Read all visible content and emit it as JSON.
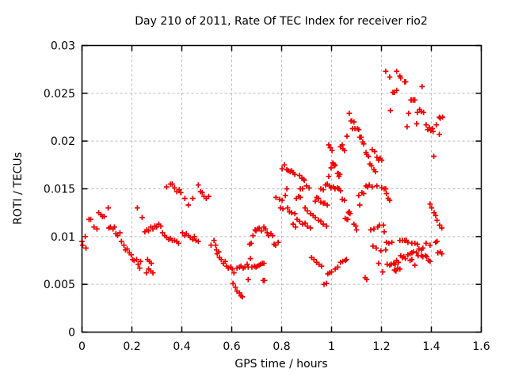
{
  "chart_data": {
    "type": "scatter",
    "title": "Day 210 of 2011, Rate Of TEC Index for receiver rio2",
    "xlabel": "GPS time / hours",
    "ylabel": "ROTI / TECUs",
    "xlim": [
      0,
      1.6
    ],
    "ylim": [
      0,
      0.03
    ],
    "xticks": [
      0,
      0.2,
      0.4,
      0.6,
      0.8,
      1,
      1.2,
      1.4,
      1.6
    ],
    "xtick_labels": [
      "0",
      "0.2",
      "0.4",
      "0.6",
      "0.8",
      "1",
      "1.2",
      "1.4",
      "1.6"
    ],
    "yticks": [
      0,
      0.005,
      0.01,
      0.015,
      0.02,
      0.025,
      0.03
    ],
    "ytick_labels": [
      "0",
      "0.005",
      "0.01",
      "0.015",
      "0.02",
      "0.025",
      "0.03"
    ],
    "grid": true,
    "legend": "none",
    "marker": "plus",
    "colors": {
      "marker": "#ee0000",
      "grid": "#b8b8b8",
      "border": "#000000",
      "background": "#ffffff",
      "text": "#000000"
    },
    "points": [
      [
        0.0,
        0.0095
      ],
      [
        0.003,
        0.0091
      ],
      [
        0.013,
        0.01
      ],
      [
        0.016,
        0.0088
      ],
      [
        0.028,
        0.0118
      ],
      [
        0.035,
        0.0118
      ],
      [
        0.048,
        0.011
      ],
      [
        0.06,
        0.0108
      ],
      [
        0.067,
        0.0125
      ],
      [
        0.076,
        0.0123
      ],
      [
        0.082,
        0.0121
      ],
      [
        0.089,
        0.0121
      ],
      [
        0.105,
        0.013
      ],
      [
        0.108,
        0.0109
      ],
      [
        0.114,
        0.011
      ],
      [
        0.124,
        0.0108
      ],
      [
        0.13,
        0.011
      ],
      [
        0.136,
        0.0103
      ],
      [
        0.143,
        0.0101
      ],
      [
        0.152,
        0.0104
      ],
      [
        0.158,
        0.0095
      ],
      [
        0.168,
        0.0091
      ],
      [
        0.174,
        0.0086
      ],
      [
        0.181,
        0.0087
      ],
      [
        0.19,
        0.0083
      ],
      [
        0.197,
        0.0081
      ],
      [
        0.203,
        0.0076
      ],
      [
        0.209,
        0.0075
      ],
      [
        0.219,
        0.0076
      ],
      [
        0.222,
        0.013
      ],
      [
        0.225,
        0.0071
      ],
      [
        0.231,
        0.0067
      ],
      [
        0.235,
        0.0074
      ],
      [
        0.241,
        0.012
      ],
      [
        0.252,
        0.0105
      ],
      [
        0.258,
        0.0062
      ],
      [
        0.26,
        0.0107
      ],
      [
        0.263,
        0.0076
      ],
      [
        0.267,
        0.0106
      ],
      [
        0.267,
        0.0066
      ],
      [
        0.27,
        0.0074
      ],
      [
        0.276,
        0.011
      ],
      [
        0.276,
        0.0064
      ],
      [
        0.278,
        0.0072
      ],
      [
        0.284,
        0.0108
      ],
      [
        0.284,
        0.0062
      ],
      [
        0.292,
        0.0111
      ],
      [
        0.299,
        0.011
      ],
      [
        0.308,
        0.0113
      ],
      [
        0.316,
        0.0111
      ],
      [
        0.323,
        0.0104
      ],
      [
        0.331,
        0.0101
      ],
      [
        0.339,
        0.0152
      ],
      [
        0.339,
        0.0099
      ],
      [
        0.348,
        0.0097
      ],
      [
        0.355,
        0.0155
      ],
      [
        0.355,
        0.0098
      ],
      [
        0.362,
        0.0155
      ],
      [
        0.362,
        0.0096
      ],
      [
        0.371,
        0.0151
      ],
      [
        0.371,
        0.0096
      ],
      [
        0.38,
        0.0147
      ],
      [
        0.38,
        0.0095
      ],
      [
        0.387,
        0.0093
      ],
      [
        0.39,
        0.0149
      ],
      [
        0.396,
        0.0146
      ],
      [
        0.403,
        0.0104
      ],
      [
        0.412,
        0.014
      ],
      [
        0.412,
        0.0101
      ],
      [
        0.418,
        0.0103
      ],
      [
        0.426,
        0.0133
      ],
      [
        0.426,
        0.0101
      ],
      [
        0.434,
        0.0099
      ],
      [
        0.444,
        0.014
      ],
      [
        0.444,
        0.0097
      ],
      [
        0.45,
        0.01
      ],
      [
        0.457,
        0.0096
      ],
      [
        0.466,
        0.0154
      ],
      [
        0.466,
        0.0095
      ],
      [
        0.475,
        0.0147
      ],
      [
        0.482,
        0.0146
      ],
      [
        0.489,
        0.0142
      ],
      [
        0.498,
        0.014
      ],
      [
        0.508,
        0.0142
      ],
      [
        0.517,
        0.0091
      ],
      [
        0.529,
        0.0096
      ],
      [
        0.536,
        0.0091
      ],
      [
        0.539,
        0.0086
      ],
      [
        0.542,
        0.0082
      ],
      [
        0.548,
        0.0084
      ],
      [
        0.551,
        0.0078
      ],
      [
        0.558,
        0.0076
      ],
      [
        0.567,
        0.0072
      ],
      [
        0.574,
        0.0074
      ],
      [
        0.58,
        0.0069
      ],
      [
        0.586,
        0.0067
      ],
      [
        0.596,
        0.0068
      ],
      [
        0.602,
        0.0066
      ],
      [
        0.605,
        0.0051
      ],
      [
        0.609,
        0.0062
      ],
      [
        0.615,
        0.0047
      ],
      [
        0.621,
        0.0067
      ],
      [
        0.621,
        0.0043
      ],
      [
        0.631,
        0.0068
      ],
      [
        0.631,
        0.0041
      ],
      [
        0.637,
        0.0069
      ],
      [
        0.637,
        0.0038
      ],
      [
        0.643,
        0.0037
      ],
      [
        0.646,
        0.0067
      ],
      [
        0.653,
        0.0068
      ],
      [
        0.662,
        0.0071
      ],
      [
        0.666,
        0.0068
      ],
      [
        0.666,
        0.0055
      ],
      [
        0.672,
        0.0092
      ],
      [
        0.675,
        0.0077
      ],
      [
        0.678,
        0.0093
      ],
      [
        0.681,
        0.0068
      ],
      [
        0.685,
        0.0101
      ],
      [
        0.691,
        0.0069
      ],
      [
        0.694,
        0.0107
      ],
      [
        0.697,
        0.0106
      ],
      [
        0.697,
        0.0068
      ],
      [
        0.703,
        0.0108
      ],
      [
        0.703,
        0.0069
      ],
      [
        0.71,
        0.0109
      ],
      [
        0.71,
        0.007
      ],
      [
        0.716,
        0.0071
      ],
      [
        0.719,
        0.0106
      ],
      [
        0.723,
        0.0072
      ],
      [
        0.726,
        0.0054
      ],
      [
        0.729,
        0.011
      ],
      [
        0.729,
        0.0072
      ],
      [
        0.732,
        0.0054
      ],
      [
        0.735,
        0.0108
      ],
      [
        0.742,
        0.0104
      ],
      [
        0.748,
        0.0101
      ],
      [
        0.757,
        0.0103
      ],
      [
        0.764,
        0.0101
      ],
      [
        0.77,
        0.0092
      ],
      [
        0.776,
        0.0091
      ],
      [
        0.777,
        0.0141
      ],
      [
        0.786,
        0.0094
      ],
      [
        0.792,
        0.0139
      ],
      [
        0.796,
        0.013
      ],
      [
        0.802,
        0.0171
      ],
      [
        0.802,
        0.0138
      ],
      [
        0.805,
        0.0129
      ],
      [
        0.811,
        0.0175
      ],
      [
        0.815,
        0.0143
      ],
      [
        0.821,
        0.017
      ],
      [
        0.821,
        0.015
      ],
      [
        0.824,
        0.013
      ],
      [
        0.827,
        0.0169
      ],
      [
        0.831,
        0.0126
      ],
      [
        0.834,
        0.0168
      ],
      [
        0.84,
        0.0169
      ],
      [
        0.84,
        0.0125
      ],
      [
        0.846,
        0.0167
      ],
      [
        0.846,
        0.0113
      ],
      [
        0.853,
        0.0165
      ],
      [
        0.853,
        0.0124
      ],
      [
        0.856,
        0.011
      ],
      [
        0.859,
        0.014
      ],
      [
        0.862,
        0.0118
      ],
      [
        0.868,
        0.0142
      ],
      [
        0.872,
        0.0164
      ],
      [
        0.872,
        0.0116
      ],
      [
        0.875,
        0.015
      ],
      [
        0.875,
        0.0141
      ],
      [
        0.881,
        0.0161
      ],
      [
        0.884,
        0.015
      ],
      [
        0.884,
        0.0113
      ],
      [
        0.888,
        0.016
      ],
      [
        0.891,
        0.0159
      ],
      [
        0.894,
        0.013
      ],
      [
        0.894,
        0.0114
      ],
      [
        0.9,
        0.0153
      ],
      [
        0.903,
        0.0127
      ],
      [
        0.903,
        0.0111
      ],
      [
        0.91,
        0.0151
      ],
      [
        0.916,
        0.0124
      ],
      [
        0.916,
        0.0109
      ],
      [
        0.92,
        0.0078
      ],
      [
        0.926,
        0.0122
      ],
      [
        0.93,
        0.0076
      ],
      [
        0.935,
        0.0137
      ],
      [
        0.935,
        0.012
      ],
      [
        0.94,
        0.0073
      ],
      [
        0.941,
        0.0141
      ],
      [
        0.948,
        0.014
      ],
      [
        0.948,
        0.0117
      ],
      [
        0.95,
        0.0071
      ],
      [
        0.957,
        0.015
      ],
      [
        0.957,
        0.0136
      ],
      [
        0.957,
        0.0116
      ],
      [
        0.96,
        0.0069
      ],
      [
        0.967,
        0.0149
      ],
      [
        0.967,
        0.0135
      ],
      [
        0.967,
        0.0113
      ],
      [
        0.97,
        0.005
      ],
      [
        0.973,
        0.0135
      ],
      [
        0.976,
        0.0154
      ],
      [
        0.98,
        0.0111
      ],
      [
        0.98,
        0.0051
      ],
      [
        0.983,
        0.0155
      ],
      [
        0.983,
        0.0133
      ],
      [
        0.985,
        0.0061
      ],
      [
        0.989,
        0.0196
      ],
      [
        0.989,
        0.0163
      ],
      [
        0.992,
        0.0153
      ],
      [
        0.992,
        0.0062
      ],
      [
        0.995,
        0.0193
      ],
      [
        0.998,
        0.0172
      ],
      [
        0.998,
        0.0151
      ],
      [
        1.0,
        0.0063
      ],
      [
        1.002,
        0.019
      ],
      [
        1.005,
        0.0177
      ],
      [
        1.008,
        0.0176
      ],
      [
        1.008,
        0.0152
      ],
      [
        1.011,
        0.0174
      ],
      [
        1.014,
        0.0175
      ],
      [
        1.014,
        0.015
      ],
      [
        1.015,
        0.0066
      ],
      [
        1.024,
        0.0166
      ],
      [
        1.024,
        0.0151
      ],
      [
        1.025,
        0.0068
      ],
      [
        1.027,
        0.0166
      ],
      [
        1.03,
        0.0163
      ],
      [
        1.03,
        0.015
      ],
      [
        1.033,
        0.0165
      ],
      [
        1.036,
        0.0194
      ],
      [
        1.036,
        0.0148
      ],
      [
        1.036,
        0.0073
      ],
      [
        1.043,
        0.0196
      ],
      [
        1.043,
        0.0139
      ],
      [
        1.045,
        0.0074
      ],
      [
        1.046,
        0.0192
      ],
      [
        1.052,
        0.019
      ],
      [
        1.052,
        0.0138
      ],
      [
        1.055,
        0.0119
      ],
      [
        1.055,
        0.0075
      ],
      [
        1.06,
        0.0076
      ],
      [
        1.062,
        0.0205
      ],
      [
        1.062,
        0.0118
      ],
      [
        1.065,
        0.0118
      ],
      [
        1.068,
        0.0125
      ],
      [
        1.071,
        0.0229
      ],
      [
        1.071,
        0.0126
      ],
      [
        1.074,
        0.0124
      ],
      [
        1.078,
        0.0221
      ],
      [
        1.081,
        0.0221
      ],
      [
        1.084,
        0.0213
      ],
      [
        1.09,
        0.022
      ],
      [
        1.09,
        0.0113
      ],
      [
        1.094,
        0.0213
      ],
      [
        1.097,
        0.0111
      ],
      [
        1.1,
        0.0107
      ],
      [
        1.103,
        0.0213
      ],
      [
        1.109,
        0.0212
      ],
      [
        1.109,
        0.0143
      ],
      [
        1.113,
        0.0204
      ],
      [
        1.113,
        0.0133
      ],
      [
        1.116,
        0.0204
      ],
      [
        1.119,
        0.0204
      ],
      [
        1.122,
        0.0146
      ],
      [
        1.125,
        0.0199
      ],
      [
        1.129,
        0.0197
      ],
      [
        1.129,
        0.0145
      ],
      [
        1.135,
        0.0057
      ],
      [
        1.138,
        0.0188
      ],
      [
        1.138,
        0.0153
      ],
      [
        1.141,
        0.0186
      ],
      [
        1.141,
        0.0055
      ],
      [
        1.144,
        0.0152
      ],
      [
        1.148,
        0.0184
      ],
      [
        1.151,
        0.0154
      ],
      [
        1.154,
        0.0176
      ],
      [
        1.157,
        0.0107
      ],
      [
        1.16,
        0.0174
      ],
      [
        1.163,
        0.0191
      ],
      [
        1.163,
        0.0152
      ],
      [
        1.166,
        0.009
      ],
      [
        1.17,
        0.017
      ],
      [
        1.17,
        0.0108
      ],
      [
        1.173,
        0.0189
      ],
      [
        1.176,
        0.0168
      ],
      [
        1.179,
        0.0088
      ],
      [
        1.182,
        0.0183
      ],
      [
        1.182,
        0.0153
      ],
      [
        1.185,
        0.011
      ],
      [
        1.189,
        0.018
      ],
      [
        1.189,
        0.0072
      ],
      [
        1.192,
        0.0112
      ],
      [
        1.195,
        0.0182
      ],
      [
        1.198,
        0.0085
      ],
      [
        1.201,
        0.018
      ],
      [
        1.201,
        0.0151
      ],
      [
        1.205,
        0.0063
      ],
      [
        1.208,
        0.0112
      ],
      [
        1.211,
        0.015
      ],
      [
        1.211,
        0.0105
      ],
      [
        1.217,
        0.0273
      ],
      [
        1.217,
        0.015
      ],
      [
        1.217,
        0.0086
      ],
      [
        1.22,
        0.0145
      ],
      [
        1.22,
        0.0094
      ],
      [
        1.223,
        0.0071
      ],
      [
        1.227,
        0.014
      ],
      [
        1.23,
        0.0093
      ],
      [
        1.233,
        0.0267
      ],
      [
        1.233,
        0.0138
      ],
      [
        1.233,
        0.007
      ],
      [
        1.236,
        0.0232
      ],
      [
        1.239,
        0.0071
      ],
      [
        1.242,
        0.0094
      ],
      [
        1.246,
        0.0251
      ],
      [
        1.249,
        0.0072
      ],
      [
        1.252,
        0.0251
      ],
      [
        1.252,
        0.0065
      ],
      [
        1.255,
        0.0071
      ],
      [
        1.258,
        0.0064
      ],
      [
        1.261,
        0.0273
      ],
      [
        1.261,
        0.0253
      ],
      [
        1.261,
        0.0075
      ],
      [
        1.265,
        0.0067
      ],
      [
        1.268,
        0.0073
      ],
      [
        1.274,
        0.0268
      ],
      [
        1.274,
        0.0096
      ],
      [
        1.274,
        0.0066
      ],
      [
        1.277,
        0.0266
      ],
      [
        1.277,
        0.008
      ],
      [
        1.284,
        0.0096
      ],
      [
        1.284,
        0.0078
      ],
      [
        1.29,
        0.0079
      ],
      [
        1.293,
        0.0262
      ],
      [
        1.293,
        0.0096
      ],
      [
        1.296,
        0.0077
      ],
      [
        1.297,
        0.0262
      ],
      [
        1.3,
        0.0096
      ],
      [
        1.303,
        0.0215
      ],
      [
        1.306,
        0.0094
      ],
      [
        1.306,
        0.0081
      ],
      [
        1.309,
        0.0229
      ],
      [
        1.315,
        0.0082
      ],
      [
        1.315,
        0.0075
      ],
      [
        1.318,
        0.0243
      ],
      [
        1.321,
        0.0243
      ],
      [
        1.322,
        0.0093
      ],
      [
        1.322,
        0.0083
      ],
      [
        1.322,
        0.0076
      ],
      [
        1.328,
        0.0243
      ],
      [
        1.328,
        0.0084
      ],
      [
        1.334,
        0.0243
      ],
      [
        1.334,
        0.0093
      ],
      [
        1.334,
        0.007
      ],
      [
        1.341,
        0.0218
      ],
      [
        1.341,
        0.0083
      ],
      [
        1.344,
        0.023
      ],
      [
        1.344,
        0.0092
      ],
      [
        1.347,
        0.008
      ],
      [
        1.35,
        0.0087
      ],
      [
        1.353,
        0.0233
      ],
      [
        1.36,
        0.0231
      ],
      [
        1.36,
        0.0086
      ],
      [
        1.36,
        0.008
      ],
      [
        1.363,
        0.0257
      ],
      [
        1.366,
        0.0088
      ],
      [
        1.366,
        0.0079
      ],
      [
        1.369,
        0.023
      ],
      [
        1.376,
        0.008
      ],
      [
        1.379,
        0.0217
      ],
      [
        1.379,
        0.0093
      ],
      [
        1.382,
        0.0079
      ],
      [
        1.385,
        0.0212
      ],
      [
        1.389,
        0.0075
      ],
      [
        1.392,
        0.0214
      ],
      [
        1.395,
        0.0134
      ],
      [
        1.395,
        0.0091
      ],
      [
        1.395,
        0.0074
      ],
      [
        1.398,
        0.0211
      ],
      [
        1.401,
        0.013
      ],
      [
        1.404,
        0.0213
      ],
      [
        1.407,
        0.021
      ],
      [
        1.41,
        0.0184
      ],
      [
        1.411,
        0.0125
      ],
      [
        1.417,
        0.0122
      ],
      [
        1.417,
        0.0094
      ],
      [
        1.42,
        0.0217
      ],
      [
        1.423,
        0.0117
      ],
      [
        1.423,
        0.0095
      ],
      [
        1.426,
        0.0083
      ],
      [
        1.432,
        0.0225
      ],
      [
        1.432,
        0.0207
      ],
      [
        1.433,
        0.0112
      ],
      [
        1.436,
        0.0224
      ],
      [
        1.436,
        0.0084
      ],
      [
        1.442,
        0.0109
      ],
      [
        1.442,
        0.0082
      ],
      [
        1.445,
        0.0225
      ]
    ]
  }
}
